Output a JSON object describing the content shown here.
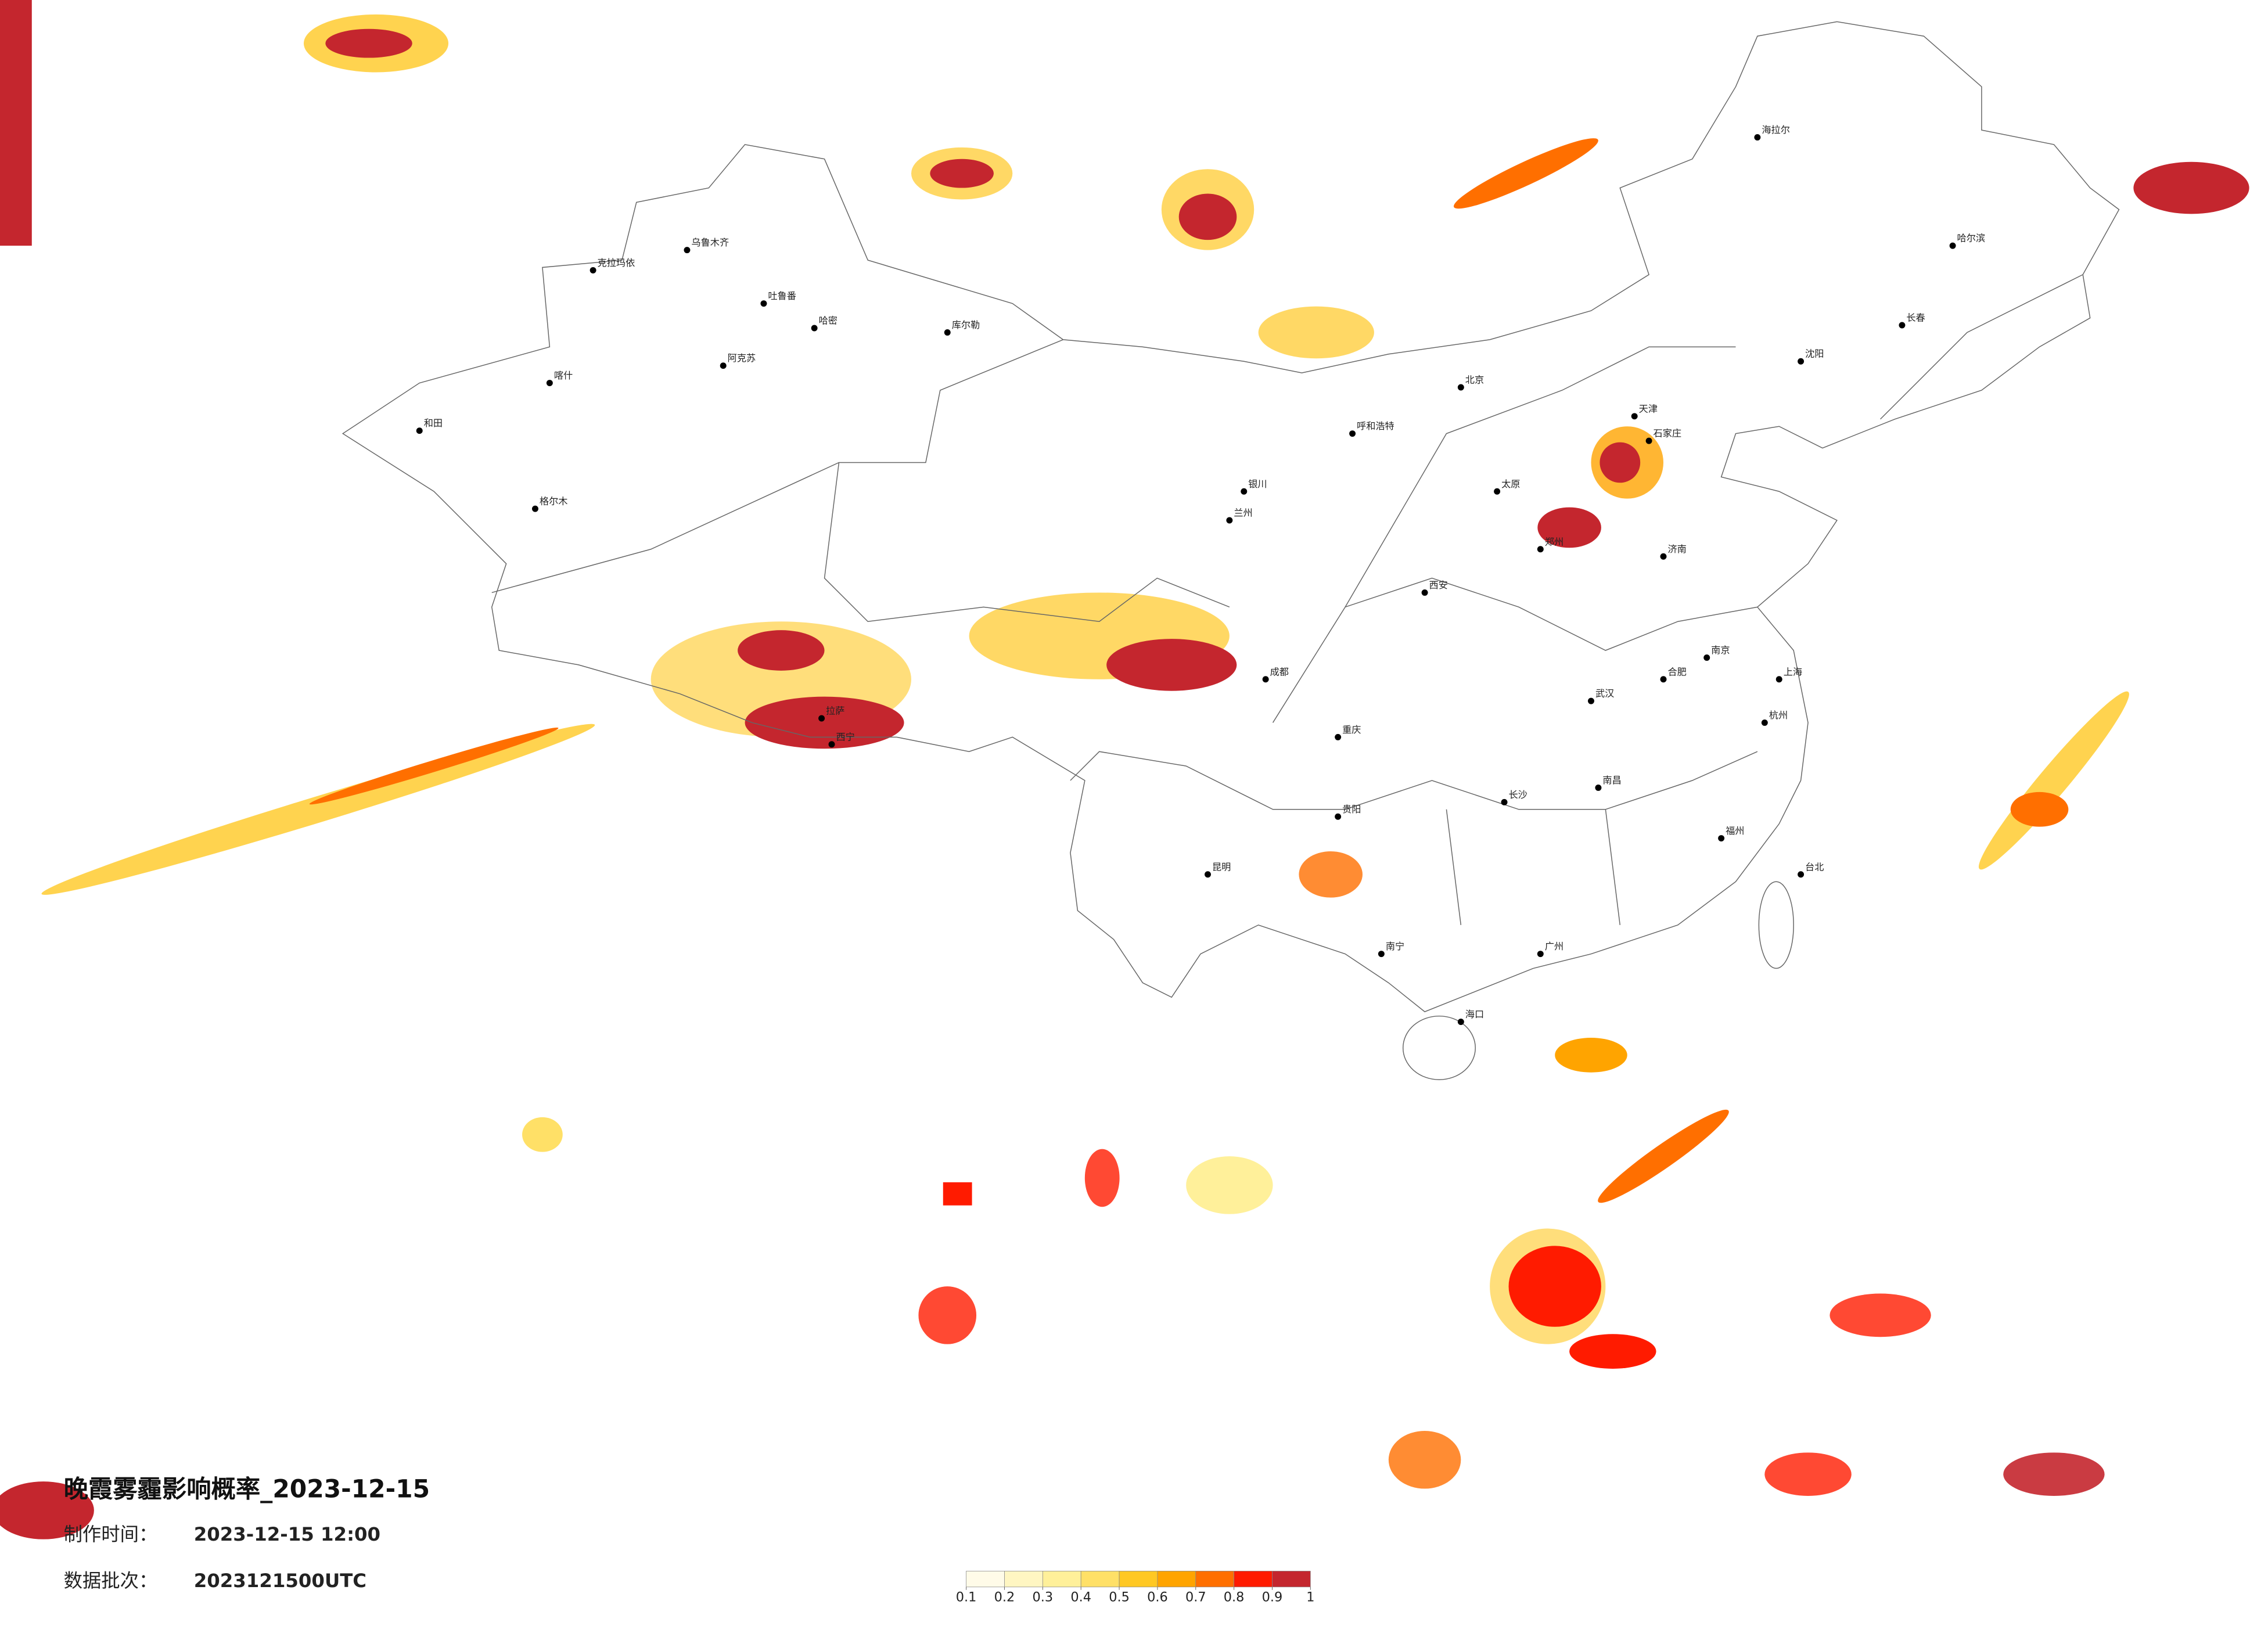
{
  "title": "晚霞雾霾影响概率_2023-12-15",
  "made_label": "制作时间：",
  "made_time": "2023-12-15 12:00",
  "batch_label": "数据批次：",
  "batch": "2023121500UTC",
  "legend": {
    "ticks": [
      0.1,
      0.2,
      0.3,
      0.4,
      0.5,
      0.6,
      0.7,
      0.8,
      0.9,
      1
    ],
    "colors": [
      "#fffbe8",
      "#fff6c2",
      "#fff09a",
      "#ffe067",
      "#ffc823",
      "#ffa400",
      "#ff6f00",
      "#ff1b00",
      "#c4262e"
    ]
  },
  "cities": [
    "克拉玛依",
    "乌鲁木齐",
    "吐鲁番",
    "哈密",
    "库尔勒",
    "阿克苏",
    "喀什",
    "和田",
    "格尔木",
    "拉萨",
    "西宁",
    "兰州",
    "银川",
    "呼和浩特",
    "北京",
    "天津",
    "石家庄",
    "太原",
    "郑州",
    "西安",
    "成都",
    "重庆",
    "贵阳",
    "昆明",
    "南宁",
    "广州",
    "长沙",
    "武汉",
    "南昌",
    "合肥",
    "南京",
    "上海",
    "杭州",
    "福州",
    "济南",
    "沈阳",
    "长春",
    "哈尔滨",
    "海拉尔",
    "海口",
    "台北"
  ]
}
